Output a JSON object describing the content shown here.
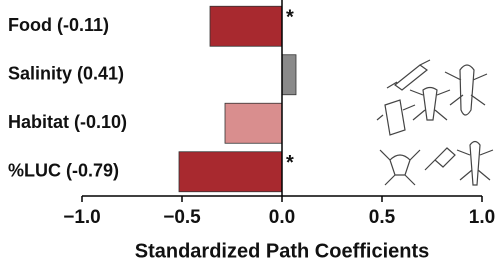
{
  "chart_data": {
    "type": "bar",
    "orientation": "horizontal",
    "categories": [
      "Food (-0.11)",
      "Salinity (0.41)",
      "Habitat (-0.10)",
      "%LUC (-0.79)"
    ],
    "values": [
      -0.36,
      0.07,
      -0.285,
      -0.515
    ],
    "colors": [
      "#a8292f",
      "#8a8a8a",
      "#d98e8e",
      "#a8292f"
    ],
    "annotations": [
      "*",
      null,
      null,
      "*"
    ],
    "xlabel": "Standardized Path Coefficients",
    "xlim": [
      -1,
      1
    ],
    "xticks": [
      {
        "value": -1,
        "label": "−1.0"
      },
      {
        "value": -0.5,
        "label": "−0.5"
      },
      {
        "value": 0,
        "label": "0.0"
      },
      0.5,
      {
        "value": 1,
        "label": "1.0"
      }
    ]
  }
}
